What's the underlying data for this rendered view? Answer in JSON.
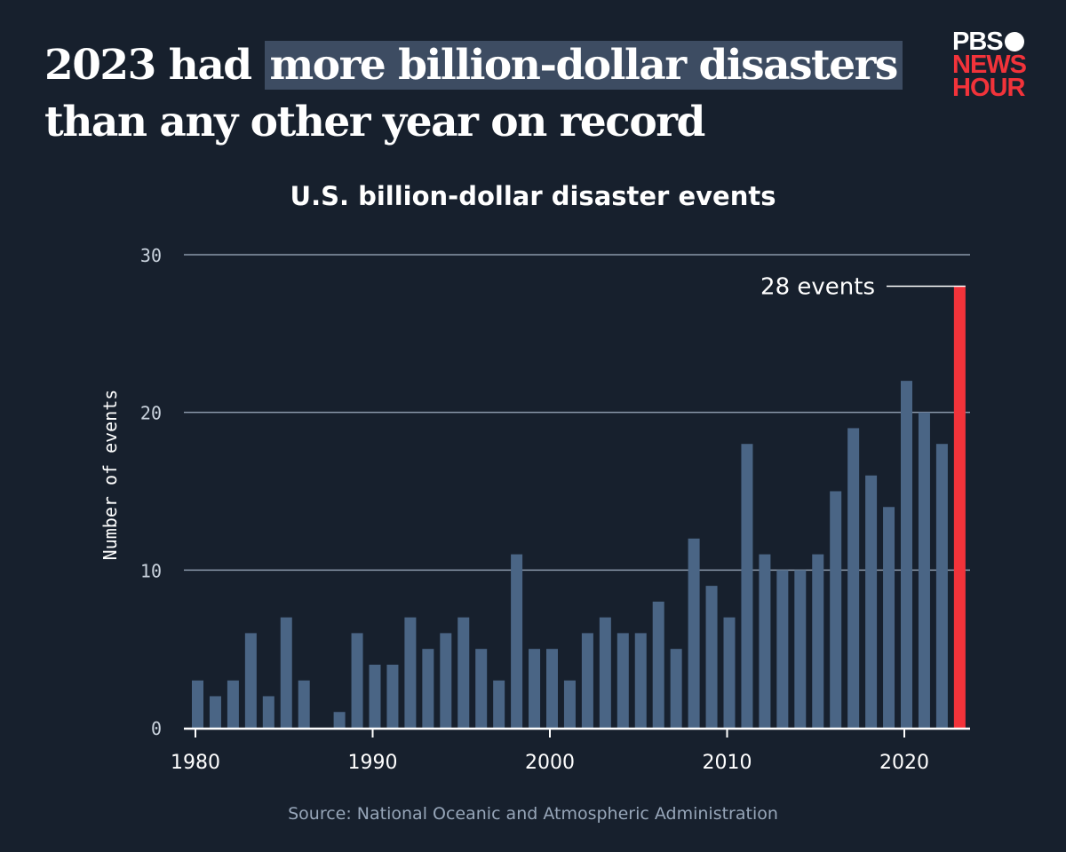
{
  "headline": {
    "pre": "2023 had ",
    "highlight": "more billion-dollar disasters",
    "post": "than any other year on record"
  },
  "logo": {
    "line1": "PBS",
    "line2": "NEWS",
    "line3": "HOUR"
  },
  "source": "Source: National Oceanic and Atmospheric Administration",
  "colors": {
    "background": "#17202d",
    "bar": "#4a6585",
    "highlight_bar": "#f2333a",
    "grid": "#8a98aa"
  },
  "chart_data": {
    "type": "bar",
    "title": "U.S. billion-dollar disaster events",
    "xlabel": "",
    "ylabel": "Number of events",
    "ylim": [
      0,
      30
    ],
    "yticks": [
      0,
      10,
      20,
      30
    ],
    "xticks": [
      1980,
      1990,
      2000,
      2010,
      2020
    ],
    "grid": true,
    "categories": [
      1980,
      1981,
      1982,
      1983,
      1984,
      1985,
      1986,
      1987,
      1988,
      1989,
      1990,
      1991,
      1992,
      1993,
      1994,
      1995,
      1996,
      1997,
      1998,
      1999,
      2000,
      2001,
      2002,
      2003,
      2004,
      2005,
      2006,
      2007,
      2008,
      2009,
      2010,
      2011,
      2012,
      2013,
      2014,
      2015,
      2016,
      2017,
      2018,
      2019,
      2020,
      2021,
      2022,
      2023
    ],
    "values": [
      3,
      2,
      3,
      6,
      2,
      7,
      3,
      0,
      1,
      6,
      4,
      4,
      7,
      5,
      6,
      7,
      5,
      3,
      11,
      5,
      5,
      3,
      6,
      7,
      6,
      6,
      8,
      5,
      12,
      9,
      7,
      18,
      11,
      10,
      10,
      11,
      15,
      19,
      16,
      14,
      22,
      20,
      18,
      28
    ],
    "highlight": {
      "category": 2023,
      "label": "28 events"
    }
  }
}
